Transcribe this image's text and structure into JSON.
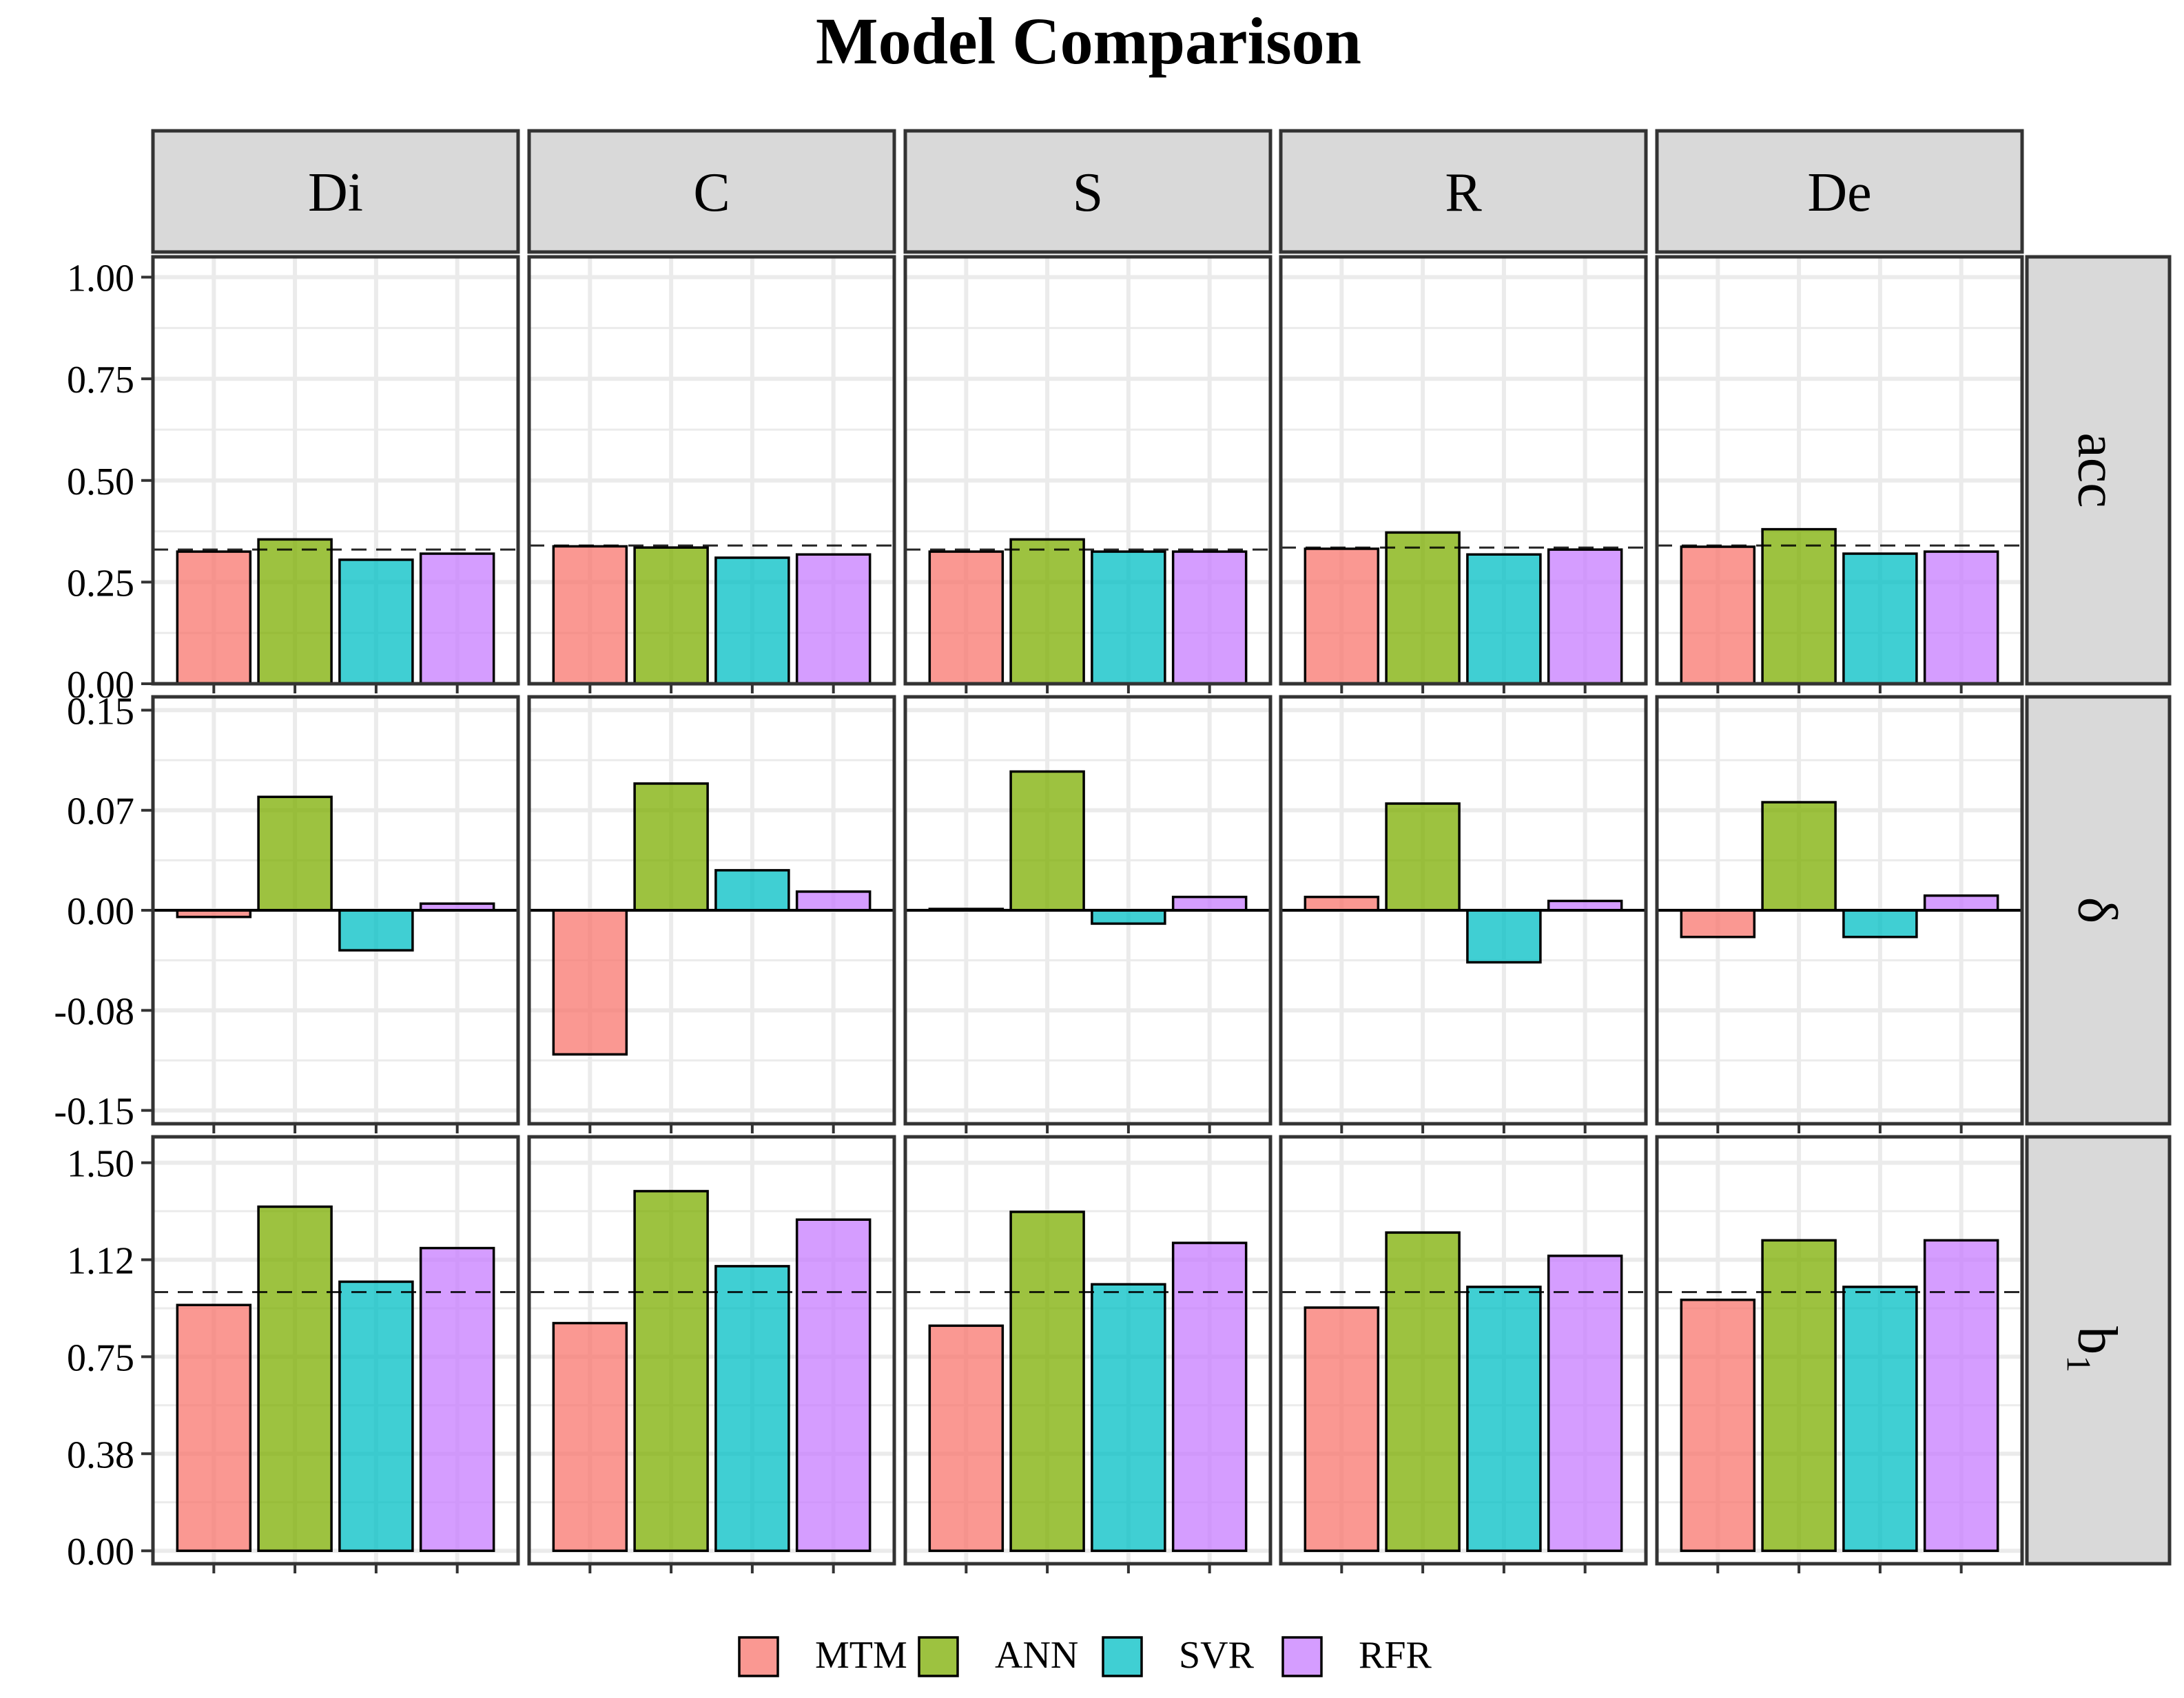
{
  "chart_data": {
    "type": "bar",
    "title": "Model Comparison",
    "xlabel": "",
    "ylabel": "",
    "columns": [
      "Di",
      "C",
      "S",
      "R",
      "De"
    ],
    "rows": [
      {
        "key": "acc",
        "label": "acc",
        "ylim": [
          0,
          1.05
        ],
        "ticks": [
          0.0,
          0.25,
          0.5,
          0.75,
          1.0
        ],
        "tick_labels": [
          "0.00",
          "0.25",
          "0.50",
          "0.75",
          "1.00"
        ],
        "reference_line": [
          0.33,
          0.34,
          0.33,
          0.335,
          0.34
        ]
      },
      {
        "key": "delta",
        "label": "δ",
        "ylim": [
          -0.16,
          0.16
        ],
        "ticks": [
          -0.15,
          -0.075,
          0.0,
          0.075,
          0.15
        ],
        "tick_labels": [
          "-0.15",
          "-0.08",
          "0.00",
          "0.07",
          "0.15"
        ],
        "reference_line": null
      },
      {
        "key": "b1",
        "label": "b₁",
        "ylim": [
          -0.05,
          1.6
        ],
        "ticks": [
          0.0,
          0.375,
          0.75,
          1.125,
          1.5
        ],
        "tick_labels": [
          "0.00",
          "0.38",
          "0.75",
          "1.12",
          "1.50"
        ],
        "reference_line": [
          1.0,
          1.0,
          1.0,
          1.0,
          1.0
        ]
      }
    ],
    "categories": [
      "MTM",
      "ANN",
      "SVR",
      "RFR"
    ],
    "series": [
      {
        "name": "MTM",
        "color": "#F8766D",
        "acc": [
          0.325,
          0.338,
          0.325,
          0.332,
          0.337
        ],
        "delta": [
          -0.005,
          -0.108,
          0.001,
          0.01,
          -0.02
        ],
        "b1": [
          0.95,
          0.88,
          0.87,
          0.94,
          0.97
        ]
      },
      {
        "name": "ANN",
        "color": "#7CAE00",
        "acc": [
          0.355,
          0.335,
          0.355,
          0.372,
          0.38
        ],
        "delta": [
          0.085,
          0.095,
          0.104,
          0.08,
          0.081
        ],
        "b1": [
          1.33,
          1.39,
          1.31,
          1.23,
          1.2
        ]
      },
      {
        "name": "SVR",
        "color": "#00BFC4",
        "acc": [
          0.305,
          0.31,
          0.325,
          0.318,
          0.32
        ],
        "delta": [
          -0.03,
          0.03,
          -0.01,
          -0.039,
          -0.02
        ],
        "b1": [
          1.04,
          1.1,
          1.03,
          1.02,
          1.02
        ]
      },
      {
        "name": "RFR",
        "color": "#C77CFF",
        "acc": [
          0.32,
          0.318,
          0.325,
          0.33,
          0.325
        ],
        "delta": [
          0.005,
          0.014,
          0.01,
          0.007,
          0.011
        ],
        "b1": [
          1.17,
          1.28,
          1.19,
          1.14,
          1.2
        ]
      }
    ],
    "legend": {
      "position": "bottom",
      "items": [
        "MTM",
        "ANN",
        "SVR",
        "RFR"
      ]
    },
    "grid": true
  }
}
